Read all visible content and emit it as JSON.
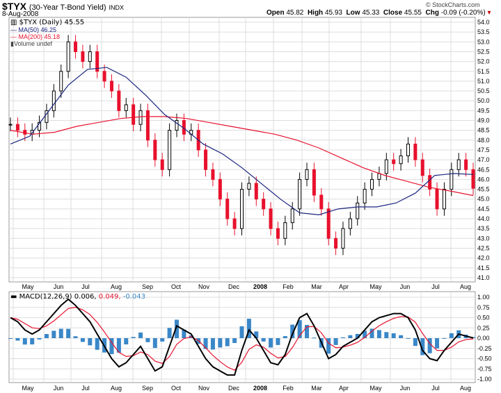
{
  "header": {
    "symbol": "$TYX",
    "name": "(30-Year T-Bond Yield)",
    "exchange": "INDX",
    "date": "8-Aug-2008",
    "copyright": "© StockCharts.com",
    "open_label": "Open",
    "open": "45.82",
    "high_label": "High",
    "high": "45.93",
    "low_label": "Low",
    "low": "45.33",
    "close_label": "Close",
    "close": "45.55",
    "chg_label": "Chg",
    "chg": "-0.09 (-0.20%)"
  },
  "legend": {
    "price": "$TYX (Daily) 45.55",
    "ma50": "MA(50) 46.25",
    "ma200": "MA(200) 45.18",
    "volume": "Volume undef",
    "macd": "MACD(12,26,9)",
    "macd_val": "0.006,",
    "signal_val": "0.049,",
    "hist_val": "-0.043"
  },
  "colors": {
    "up": "#000000",
    "down": "#e8112d",
    "ma50": "#1a237e",
    "ma200": "#e8112d",
    "hist": "#3a87c8",
    "grid": "#dddddd"
  },
  "chart_data": [
    {
      "type": "line",
      "title": "$TYX (Daily)",
      "ylim": [
        41,
        54
      ],
      "yticks": [
        "54.0",
        "53.5",
        "53.0",
        "52.5",
        "52.0",
        "51.5",
        "51.0",
        "50.5",
        "50.0",
        "49.5",
        "49.0",
        "48.5",
        "48.0",
        "47.5",
        "47.0",
        "46.5",
        "46.0",
        "45.5",
        "45.0",
        "44.5",
        "44.0",
        "43.5",
        "43.0",
        "42.5",
        "42.0",
        "41.5",
        "41.0"
      ],
      "months": [
        "May",
        "Jun",
        "Jul",
        "Aug",
        "Sep",
        "Oct",
        "Nov",
        "Dec",
        "2008",
        "Feb",
        "Mar",
        "Apr",
        "May",
        "Jun",
        "Jul",
        "Aug"
      ],
      "close": [
        48.8,
        48.5,
        48.3,
        48.5,
        48.9,
        49.5,
        50.5,
        51.5,
        53.0,
        52.5,
        52.0,
        52.5,
        51.5,
        51.0,
        50.5,
        49.5,
        49.8,
        48.8,
        49.5,
        48.0,
        47.0,
        46.5,
        48.5,
        49.0,
        48.3,
        48.5,
        47.5,
        46.5,
        46.0,
        45.0,
        44.0,
        43.5,
        45.5,
        45.8,
        45.0,
        44.5,
        43.5,
        43.0,
        43.8,
        44.5,
        46.0,
        46.5,
        45.2,
        44.5,
        43.0,
        42.5,
        43.5,
        44.0,
        44.8,
        45.5,
        46.0,
        46.3,
        47.0,
        46.8,
        47.2,
        47.8,
        47.0,
        46.2,
        45.5,
        44.5,
        45.5,
        46.5,
        47.0,
        46.5,
        45.55
      ],
      "ma50": [
        47.8,
        48.2,
        49.5,
        50.8,
        51.6,
        51.7,
        51.2,
        50.3,
        49.3,
        48.6,
        47.8,
        47.3,
        46.6,
        45.8,
        45.0,
        44.3,
        44.2,
        44.5,
        44.6,
        44.6,
        44.8,
        45.3,
        46.2,
        46.3,
        46.25
      ],
      "ma200": [
        48.5,
        48.3,
        48.4,
        48.7,
        48.9,
        49.1,
        49.2,
        49.2,
        49.1,
        48.9,
        48.7,
        48.5,
        48.3,
        48.0,
        47.6,
        47.1,
        46.6,
        46.2,
        45.9,
        45.6,
        45.4,
        45.18
      ]
    },
    {
      "type": "line",
      "title": "MACD(12,26,9)",
      "ylim": [
        -1,
        1
      ],
      "yticks": [
        "1.00",
        "0.75",
        "0.50",
        "0.25",
        "0.00",
        "-0.25",
        "-0.50",
        "-0.75",
        "-1.00"
      ],
      "macd": [
        0.5,
        0.4,
        0.2,
        0.1,
        0.2,
        0.4,
        0.6,
        0.8,
        0.95,
        0.8,
        0.6,
        0.4,
        0.1,
        -0.2,
        -0.5,
        -0.7,
        -0.6,
        -0.4,
        -0.2,
        -0.5,
        -0.8,
        -0.7,
        -0.2,
        0.3,
        0.2,
        0.1,
        -0.2,
        -0.5,
        -0.7,
        -0.8,
        -0.9,
        -0.9,
        -0.3,
        0.2,
        0.0,
        -0.3,
        -0.6,
        -0.65,
        -0.4,
        0.1,
        0.5,
        0.6,
        0.3,
        -0.1,
        -0.5,
        -0.4,
        -0.2,
        -0.1,
        0.0,
        0.2,
        0.4,
        0.5,
        0.55,
        0.6,
        0.6,
        0.5,
        0.2,
        -0.3,
        -0.5,
        -0.55,
        -0.3,
        -0.1,
        0.1,
        0.05,
        0.006
      ]
    }
  ]
}
